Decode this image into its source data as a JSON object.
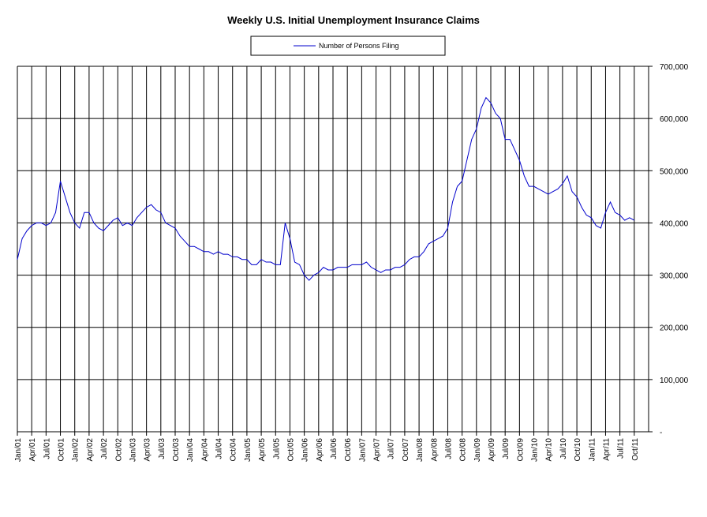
{
  "chart_data": {
    "type": "line",
    "title": "Weekly U.S. Initial Unemployment Insurance Claims",
    "categories": [
      "Jan/01",
      null,
      null,
      "Apr/01",
      null,
      null,
      "Jul/01",
      null,
      null,
      "Oct/01",
      null,
      null,
      "Jan/02",
      null,
      null,
      "Apr/02",
      null,
      null,
      "Jul/02",
      null,
      null,
      "Oct/02",
      null,
      null,
      "Jan/03",
      null,
      null,
      "Apr/03",
      null,
      null,
      "Jul/03",
      null,
      null,
      "Oct/03",
      null,
      null,
      "Jan/04",
      null,
      null,
      "Apr/04",
      null,
      null,
      "Jul/04",
      null,
      null,
      "Oct/04",
      null,
      null,
      "Jan/05",
      null,
      null,
      "Apr/05",
      null,
      null,
      "Jul/05",
      null,
      null,
      "Oct/05",
      null,
      null,
      "Jan/06",
      null,
      null,
      "Apr/06",
      null,
      null,
      "Jul/06",
      null,
      null,
      "Oct/06",
      null,
      null,
      "Jan/07",
      null,
      null,
      "Apr/07",
      null,
      null,
      "Jul/07",
      null,
      null,
      "Oct/07",
      null,
      null,
      "Jan/08",
      null,
      null,
      "Apr/08",
      null,
      null,
      "Jul/08",
      null,
      null,
      "Oct/08",
      null,
      null,
      "Jan/09",
      null,
      null,
      "Apr/09",
      null,
      null,
      "Jul/09",
      null,
      null,
      "Oct/09",
      null,
      null,
      "Jan/10",
      null,
      null,
      "Apr/10",
      null,
      null,
      "Jul/10",
      null,
      null,
      "Oct/10",
      null,
      null,
      "Jan/11",
      null,
      null,
      "Apr/11",
      null,
      null,
      "Jul/11",
      null,
      null,
      "Oct/11",
      null,
      null
    ],
    "series": [
      {
        "name": "Number of Persons Filing",
        "color": "#0000cc",
        "values": [
          330000,
          370000,
          385000,
          395000,
          400000,
          400000,
          395000,
          400000,
          420000,
          480000,
          450000,
          420000,
          400000,
          390000,
          420000,
          420000,
          400000,
          390000,
          385000,
          395000,
          405000,
          410000,
          395000,
          400000,
          395000,
          410000,
          420000,
          430000,
          435000,
          425000,
          420000,
          400000,
          395000,
          390000,
          375000,
          365000,
          355000,
          355000,
          350000,
          345000,
          345000,
          340000,
          345000,
          340000,
          340000,
          335000,
          335000,
          330000,
          330000,
          320000,
          320000,
          330000,
          325000,
          325000,
          320000,
          320000,
          400000,
          370000,
          325000,
          320000,
          300000,
          290000,
          300000,
          305000,
          315000,
          310000,
          310000,
          315000,
          315000,
          315000,
          320000,
          320000,
          320000,
          325000,
          315000,
          310000,
          305000,
          310000,
          310000,
          315000,
          315000,
          320000,
          330000,
          335000,
          335000,
          345000,
          360000,
          365000,
          370000,
          375000,
          390000,
          440000,
          470000,
          480000,
          520000,
          560000,
          580000,
          620000,
          640000,
          630000,
          610000,
          600000,
          560000,
          560000,
          540000,
          520000,
          490000,
          470000,
          470000,
          465000,
          460000,
          455000,
          460000,
          465000,
          475000,
          490000,
          460000,
          450000,
          430000,
          415000,
          410000,
          395000,
          390000,
          420000,
          440000,
          420000,
          415000,
          405000,
          410000,
          405000,
          null,
          null
        ]
      }
    ],
    "ylim": [
      0,
      700000
    ],
    "yticks": [
      {
        "value": 0,
        "label": "-"
      },
      {
        "value": 100000,
        "label": "100,000"
      },
      {
        "value": 200000,
        "label": "200,000"
      },
      {
        "value": 300000,
        "label": "300,000"
      },
      {
        "value": 400000,
        "label": "400,000"
      },
      {
        "value": 500000,
        "label": "500,000"
      },
      {
        "value": 600000,
        "label": "600,000"
      },
      {
        "value": 700000,
        "label": "700,000"
      }
    ],
    "grid": true
  }
}
